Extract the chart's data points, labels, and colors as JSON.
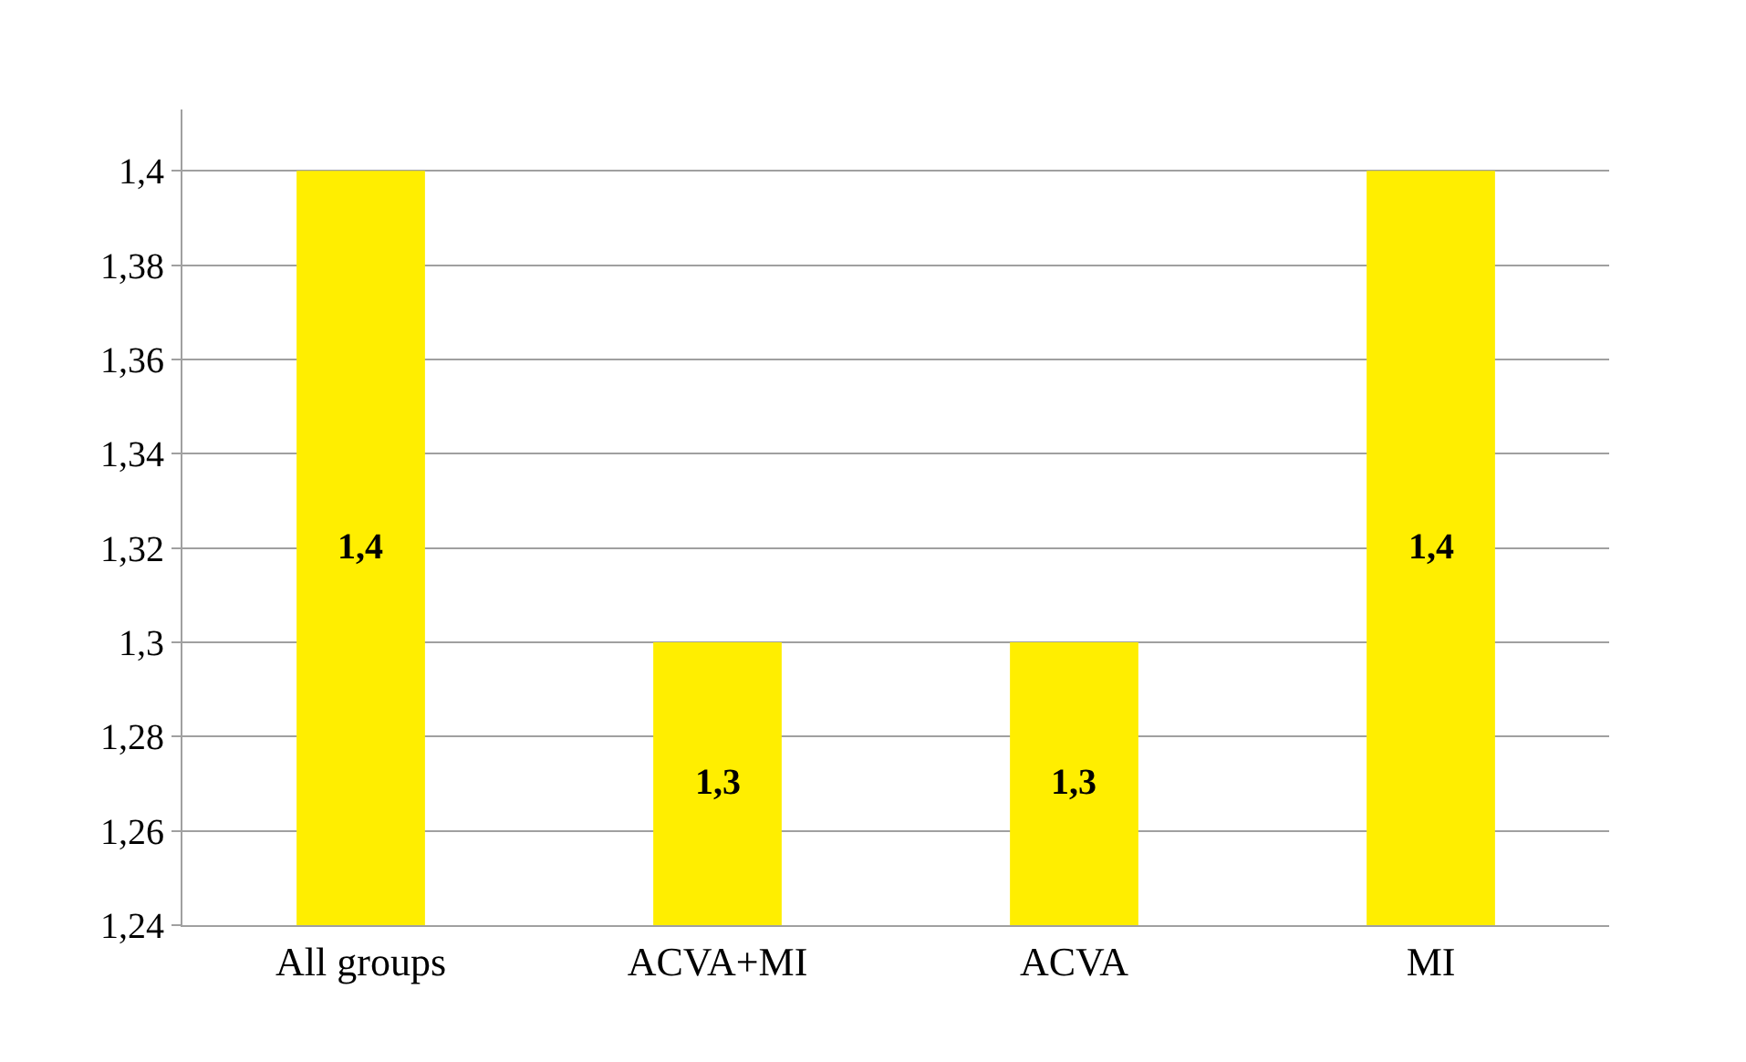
{
  "chart_data": {
    "type": "bar",
    "categories": [
      "All groups",
      "ACVA+MI",
      "ACVA",
      "MI"
    ],
    "values": [
      1.4,
      1.3,
      1.3,
      1.4
    ],
    "value_labels": [
      "1,4",
      "1,3",
      "1,3",
      "1,4"
    ],
    "color": "#ffee00",
    "ylim": [
      1.24,
      1.413
    ],
    "yticks": [
      {
        "value": 1.24,
        "label": "1,24"
      },
      {
        "value": 1.26,
        "label": "1,26"
      },
      {
        "value": 1.28,
        "label": "1,28"
      },
      {
        "value": 1.3,
        "label": "1,3"
      },
      {
        "value": 1.32,
        "label": "1,32"
      },
      {
        "value": 1.34,
        "label": "1,34"
      },
      {
        "value": 1.36,
        "label": "1,36"
      },
      {
        "value": 1.38,
        "label": "1,38"
      },
      {
        "value": 1.4,
        "label": "1,4"
      }
    ],
    "grid": "y"
  }
}
